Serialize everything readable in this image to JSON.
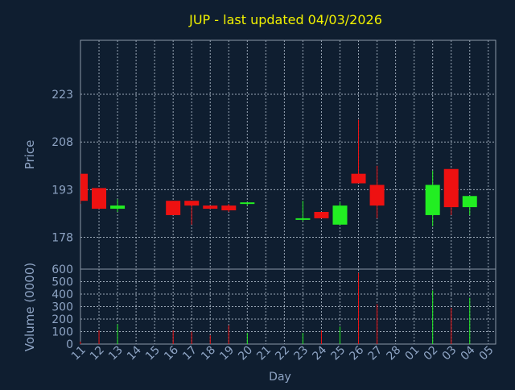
{
  "chart_data": {
    "type": "candlestick",
    "title": "JUP - last updated 04/03/2026",
    "xlabel": "Day",
    "price_panel": {
      "ylabel": "Price",
      "ylim": [
        168,
        240
      ],
      "yticks": [
        178,
        193,
        208,
        223
      ]
    },
    "volume_panel": {
      "ylabel": "Volume (0000)",
      "ylim": [
        0,
        600
      ],
      "yticks": [
        0,
        100,
        200,
        300,
        400,
        500,
        600
      ]
    },
    "x_tick_labels": [
      "11",
      "12",
      "13",
      "14",
      "15",
      "16",
      "17",
      "18",
      "19",
      "20",
      "21",
      "22",
      "23",
      "24",
      "25",
      "26",
      "27",
      "28",
      "01",
      "02",
      "03",
      "04",
      "05"
    ],
    "grid": true,
    "colors": {
      "background": "#0f1e30",
      "grid": "#9aa7b6",
      "up": "#22ee22",
      "down": "#ee1111",
      "title": "#f0f000",
      "axis_text": "#8ea4c4",
      "frame": "#8b98a8"
    },
    "candles": [
      {
        "day": "11",
        "open": 198,
        "high": 198,
        "low": 188.5,
        "close": 189.5,
        "volume": 20
      },
      {
        "day": "12",
        "open": 193.5,
        "high": 193.5,
        "low": 187,
        "close": 187,
        "volume": 110
      },
      {
        "day": "13",
        "open": 187,
        "high": 190,
        "low": 186,
        "close": 188,
        "volume": 160
      },
      {
        "day": "16",
        "open": 189.5,
        "high": 189.5,
        "low": 185,
        "close": 185,
        "volume": 110
      },
      {
        "day": "17",
        "open": 189.5,
        "high": 189.5,
        "low": 182,
        "close": 188,
        "volume": 100
      },
      {
        "day": "18",
        "open": 188,
        "high": 188,
        "low": 187,
        "close": 187,
        "volume": 70
      },
      {
        "day": "19",
        "open": 188,
        "high": 188.5,
        "low": 186,
        "close": 186.5,
        "volume": 150
      },
      {
        "day": "20",
        "open": 188.5,
        "high": 189,
        "low": 188,
        "close": 189,
        "volume": 90
      },
      {
        "day": "23",
        "open": 183.5,
        "high": 189.5,
        "low": 183,
        "close": 184,
        "volume": 90
      },
      {
        "day": "24",
        "open": 186,
        "high": 186,
        "low": 184,
        "close": 184,
        "volume": 110
      },
      {
        "day": "25",
        "open": 182,
        "high": 189,
        "low": 182,
        "close": 188,
        "volume": 140
      },
      {
        "day": "26",
        "open": 198,
        "high": 215,
        "low": 195,
        "close": 195,
        "volume": 570
      },
      {
        "day": "27",
        "open": 194.5,
        "high": 200.5,
        "low": 184,
        "close": 188,
        "volume": 320
      },
      {
        "day": "02",
        "open": 185,
        "high": 199,
        "low": 181.5,
        "close": 194.5,
        "volume": 430
      },
      {
        "day": "03",
        "open": 199.5,
        "high": 199.5,
        "low": 185,
        "close": 187.5,
        "volume": 290
      },
      {
        "day": "04",
        "open": 187.5,
        "high": 191,
        "low": 185,
        "close": 191,
        "volume": 370
      }
    ]
  }
}
